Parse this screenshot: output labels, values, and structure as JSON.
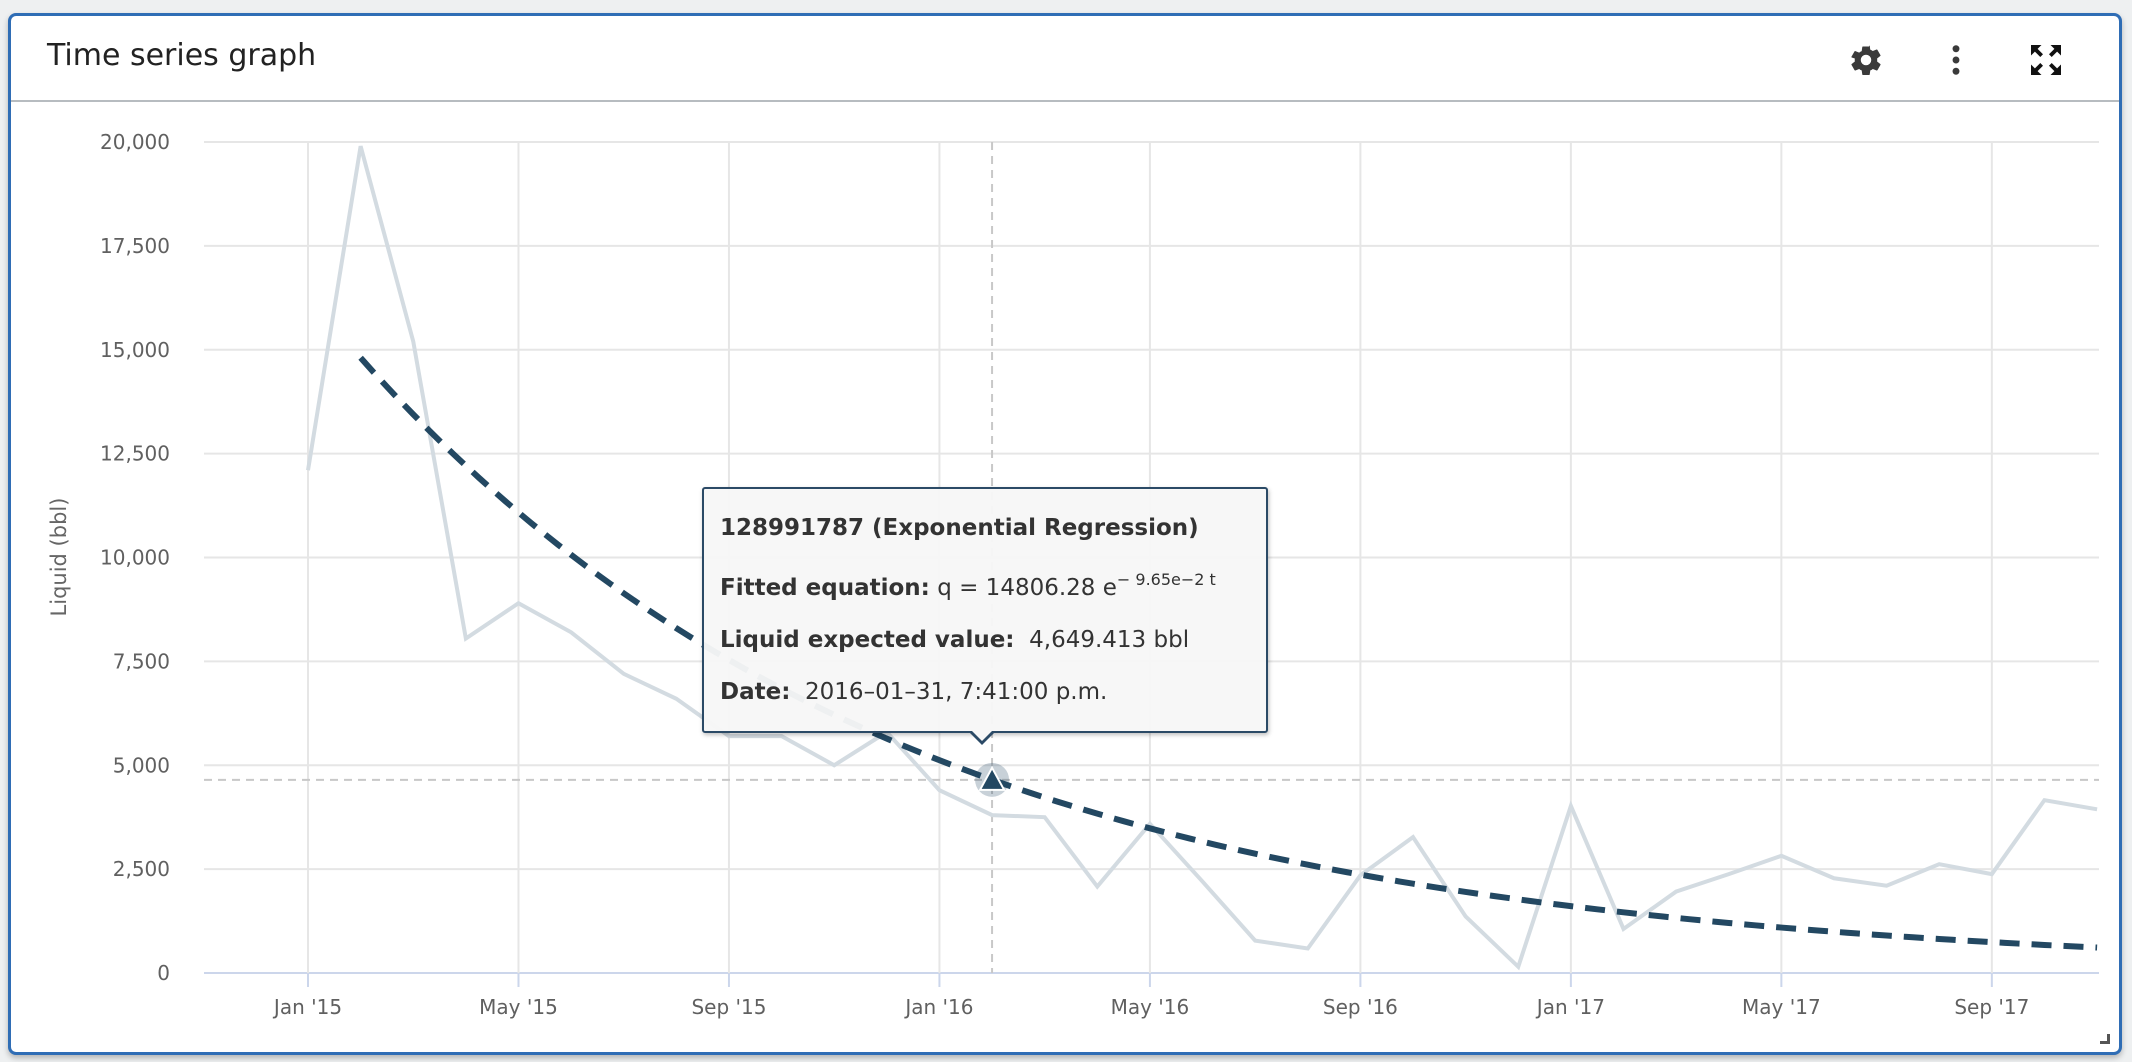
{
  "panel": {
    "title": "Time series graph",
    "icons": {
      "settings": "gear-icon",
      "menu": "kebab-menu-icon",
      "fullscreen": "expand-icon",
      "resize": "resize-handle-icon"
    }
  },
  "colors": {
    "frame": "#2f6db5",
    "fit_line": "#234862",
    "data_line": "#d3dbe1",
    "grid": "#e6e6e6",
    "axis": "#ccd6eb"
  },
  "tooltip": {
    "title": "128991787 (Exponential Regression)",
    "equation_label": "Fitted equation:",
    "equation_lhs": "q = 14806.28 e",
    "equation_exp": "− 9.65e−2 t",
    "expected_label": "Liquid expected value:",
    "expected_value": "4,649.413 bbl",
    "date_label": "Date:",
    "date_value": "2016–01–31, 7:41:00 p.m."
  },
  "chart_data": {
    "type": "line",
    "title": "Time series graph",
    "xlabel": "",
    "ylabel": "Liquid (bbl)",
    "ylim": [
      0,
      20000
    ],
    "yticks": [
      0,
      2500,
      5000,
      7500,
      10000,
      12500,
      15000,
      17500,
      20000
    ],
    "ytick_labels": [
      "0",
      "2,500",
      "5,000",
      "7,500",
      "10,000",
      "12,500",
      "15,000",
      "17,500",
      "20,000"
    ],
    "xlim": [
      "2014-12-06",
      "2017-11-01"
    ],
    "xticks": [
      "2015-01",
      "2015-05",
      "2015-09",
      "2016-01",
      "2016-05",
      "2016-09",
      "2017-01",
      "2017-05",
      "2017-09"
    ],
    "xtick_labels": [
      "Jan '15",
      "May '15",
      "Sep '15",
      "Jan '16",
      "May '16",
      "Sep '16",
      "Jan '17",
      "May '17",
      "Sep '17"
    ],
    "grid": true,
    "legend": "none",
    "series": [
      {
        "name": "128991787",
        "style": "solid",
        "x": [
          "2015-01",
          "2015-02",
          "2015-03",
          "2015-04",
          "2015-05",
          "2015-06",
          "2015-07",
          "2015-08",
          "2015-09",
          "2015-10",
          "2015-11",
          "2015-12",
          "2016-01",
          "2016-02",
          "2016-03",
          "2016-04",
          "2016-05",
          "2016-06",
          "2016-07",
          "2016-08",
          "2016-09",
          "2016-10",
          "2016-11",
          "2016-12",
          "2017-01",
          "2017-02",
          "2017-03",
          "2017-04",
          "2017-05",
          "2017-06",
          "2017-07",
          "2017-08",
          "2017-09",
          "2017-10",
          "2017-11"
        ],
        "values": [
          12100,
          19900,
          15200,
          8050,
          8900,
          8200,
          7200,
          6600,
          5700,
          5700,
          5000,
          5800,
          4400,
          3800,
          3750,
          2080,
          3590,
          2200,
          780,
          590,
          2350,
          3270,
          1360,
          150,
          4020,
          1060,
          1960,
          2380,
          2820,
          2280,
          2100,
          2620,
          2380,
          4160,
          3940
        ]
      },
      {
        "name": "128991787 (Exponential Regression)",
        "style": "dashed",
        "model": "q = 14806.28 e^(-9.65e-2 t)",
        "q0": 14806.28,
        "decline_per_month": 0.0965,
        "x_start": "2015-02",
        "x_end": "2017-11"
      }
    ],
    "hover": {
      "x": "2016-02",
      "value": 4649.413,
      "marker": "triangle"
    }
  }
}
